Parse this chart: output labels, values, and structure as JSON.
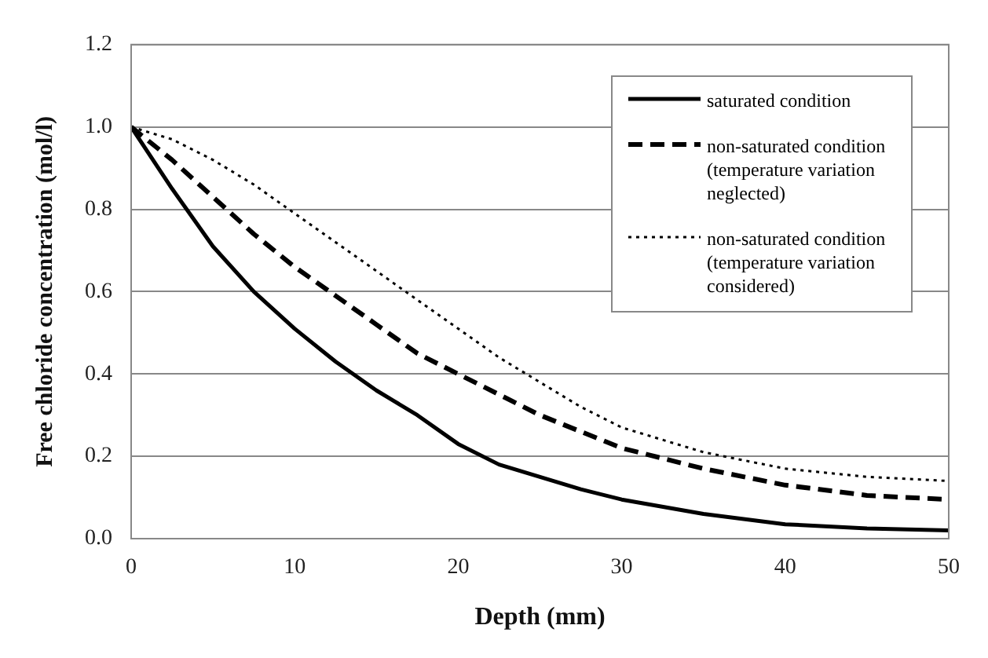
{
  "chart_data": {
    "type": "line",
    "xlabel": "Depth (mm)",
    "ylabel": "Free chloride concentration (mol/l)",
    "x": [
      0,
      2.5,
      5,
      7.5,
      10,
      12.5,
      15,
      17.5,
      20,
      22.5,
      25,
      27.5,
      30,
      35,
      40,
      45,
      50
    ],
    "series": [
      {
        "name": "saturated condition",
        "color": "#000000",
        "line_style": "solid",
        "values": [
          1.0,
          0.85,
          0.71,
          0.6,
          0.51,
          0.43,
          0.36,
          0.3,
          0.23,
          0.18,
          0.15,
          0.12,
          0.095,
          0.06,
          0.035,
          0.025,
          0.02
        ]
      },
      {
        "name": "non-saturated condition (temperature variation neglected)",
        "color": "#000000",
        "line_style": "dashed",
        "values": [
          1.0,
          0.92,
          0.83,
          0.74,
          0.66,
          0.59,
          0.52,
          0.45,
          0.4,
          0.35,
          0.3,
          0.26,
          0.22,
          0.17,
          0.13,
          0.105,
          0.095
        ]
      },
      {
        "name": "non-saturated condition (temperature variation considered)",
        "color": "#000000",
        "line_style": "dotted",
        "values": [
          1.0,
          0.97,
          0.92,
          0.86,
          0.79,
          0.72,
          0.65,
          0.58,
          0.51,
          0.44,
          0.38,
          0.32,
          0.27,
          0.21,
          0.17,
          0.15,
          0.14
        ]
      }
    ],
    "xlim": [
      0,
      50
    ],
    "xticks": [
      0,
      10,
      20,
      30,
      40,
      50
    ],
    "ylim": [
      0,
      1.2
    ],
    "yticks": [
      {
        "value": 0,
        "label": "0.0"
      },
      0.2,
      0.4,
      0.6,
      0.8,
      {
        "value": 1,
        "label": "1.0"
      },
      1.2
    ],
    "grid": "y",
    "legend": "top right",
    "marker": "none"
  }
}
